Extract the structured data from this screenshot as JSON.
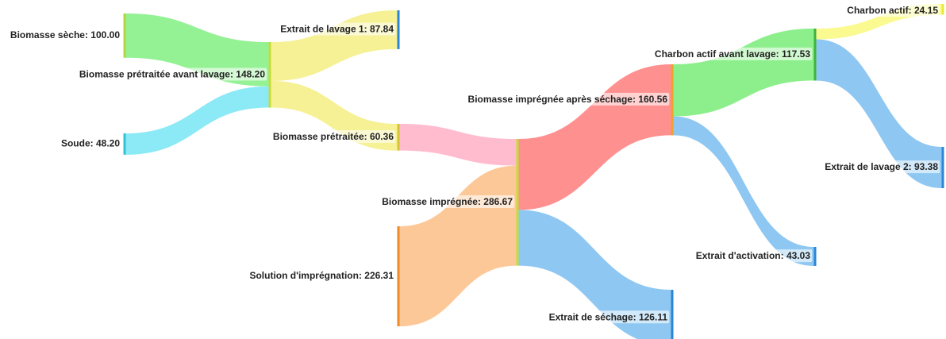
{
  "chart_data": {
    "type": "sankey",
    "nodes": {
      "labels": [
        "Biomasse sèche: 100.00",
        "Soude: 48.20",
        "Biomasse prétraitée avant lavage: 148.20",
        "Extrait de lavage 1: 87.84",
        "Biomasse prétraitée: 60.36",
        "Solution d'imprégnation: 226.31",
        "Biomasse imprégnée: 286.67",
        "Biomasse imprégnée après séchage: 160.56",
        "Extrait de séchage: 126.11",
        "Charbon actif avant lavage: 117.53",
        "Extrait d'activation: 43.03",
        "Charbon actif: 24.15",
        "Extrait de lavage 2: 93.38"
      ],
      "values": [
        100,
        48.2,
        148.2,
        87.84,
        60.36,
        226.31,
        286.67,
        160.56,
        126.11,
        117.53,
        43.03,
        24.15,
        93.38
      ],
      "colors": [
        "#b5d63a",
        "#2ec4d6",
        "#c5dc3a",
        "#2b86d6",
        "#d8c23a",
        "#f08a2a",
        "#c5dc3a",
        "#f0a030",
        "#2b86d6",
        "#3cb43c",
        "#2b86d6",
        "#e8e83a",
        "#2b86d6"
      ]
    },
    "links": {
      "source": [
        0,
        1,
        2,
        2,
        4,
        5,
        6,
        6,
        7,
        7,
        9,
        9
      ],
      "target": [
        2,
        2,
        3,
        4,
        6,
        6,
        7,
        8,
        9,
        10,
        11,
        12
      ],
      "values": [
        100,
        48.2,
        87.84,
        60.36,
        60.36,
        226.31,
        160.56,
        126.11,
        117.53,
        43.03,
        24.15,
        93.38
      ],
      "colors": [
        "#8ef08e",
        "#86e8f5",
        "#f5f08e",
        "#f5f08e",
        "#ffb8cc",
        "#fdc592",
        "#ff8a8a",
        "#88c4f0",
        "#86ee86",
        "#88c4f0",
        "#fafa8a",
        "#88c4f0"
      ]
    }
  }
}
